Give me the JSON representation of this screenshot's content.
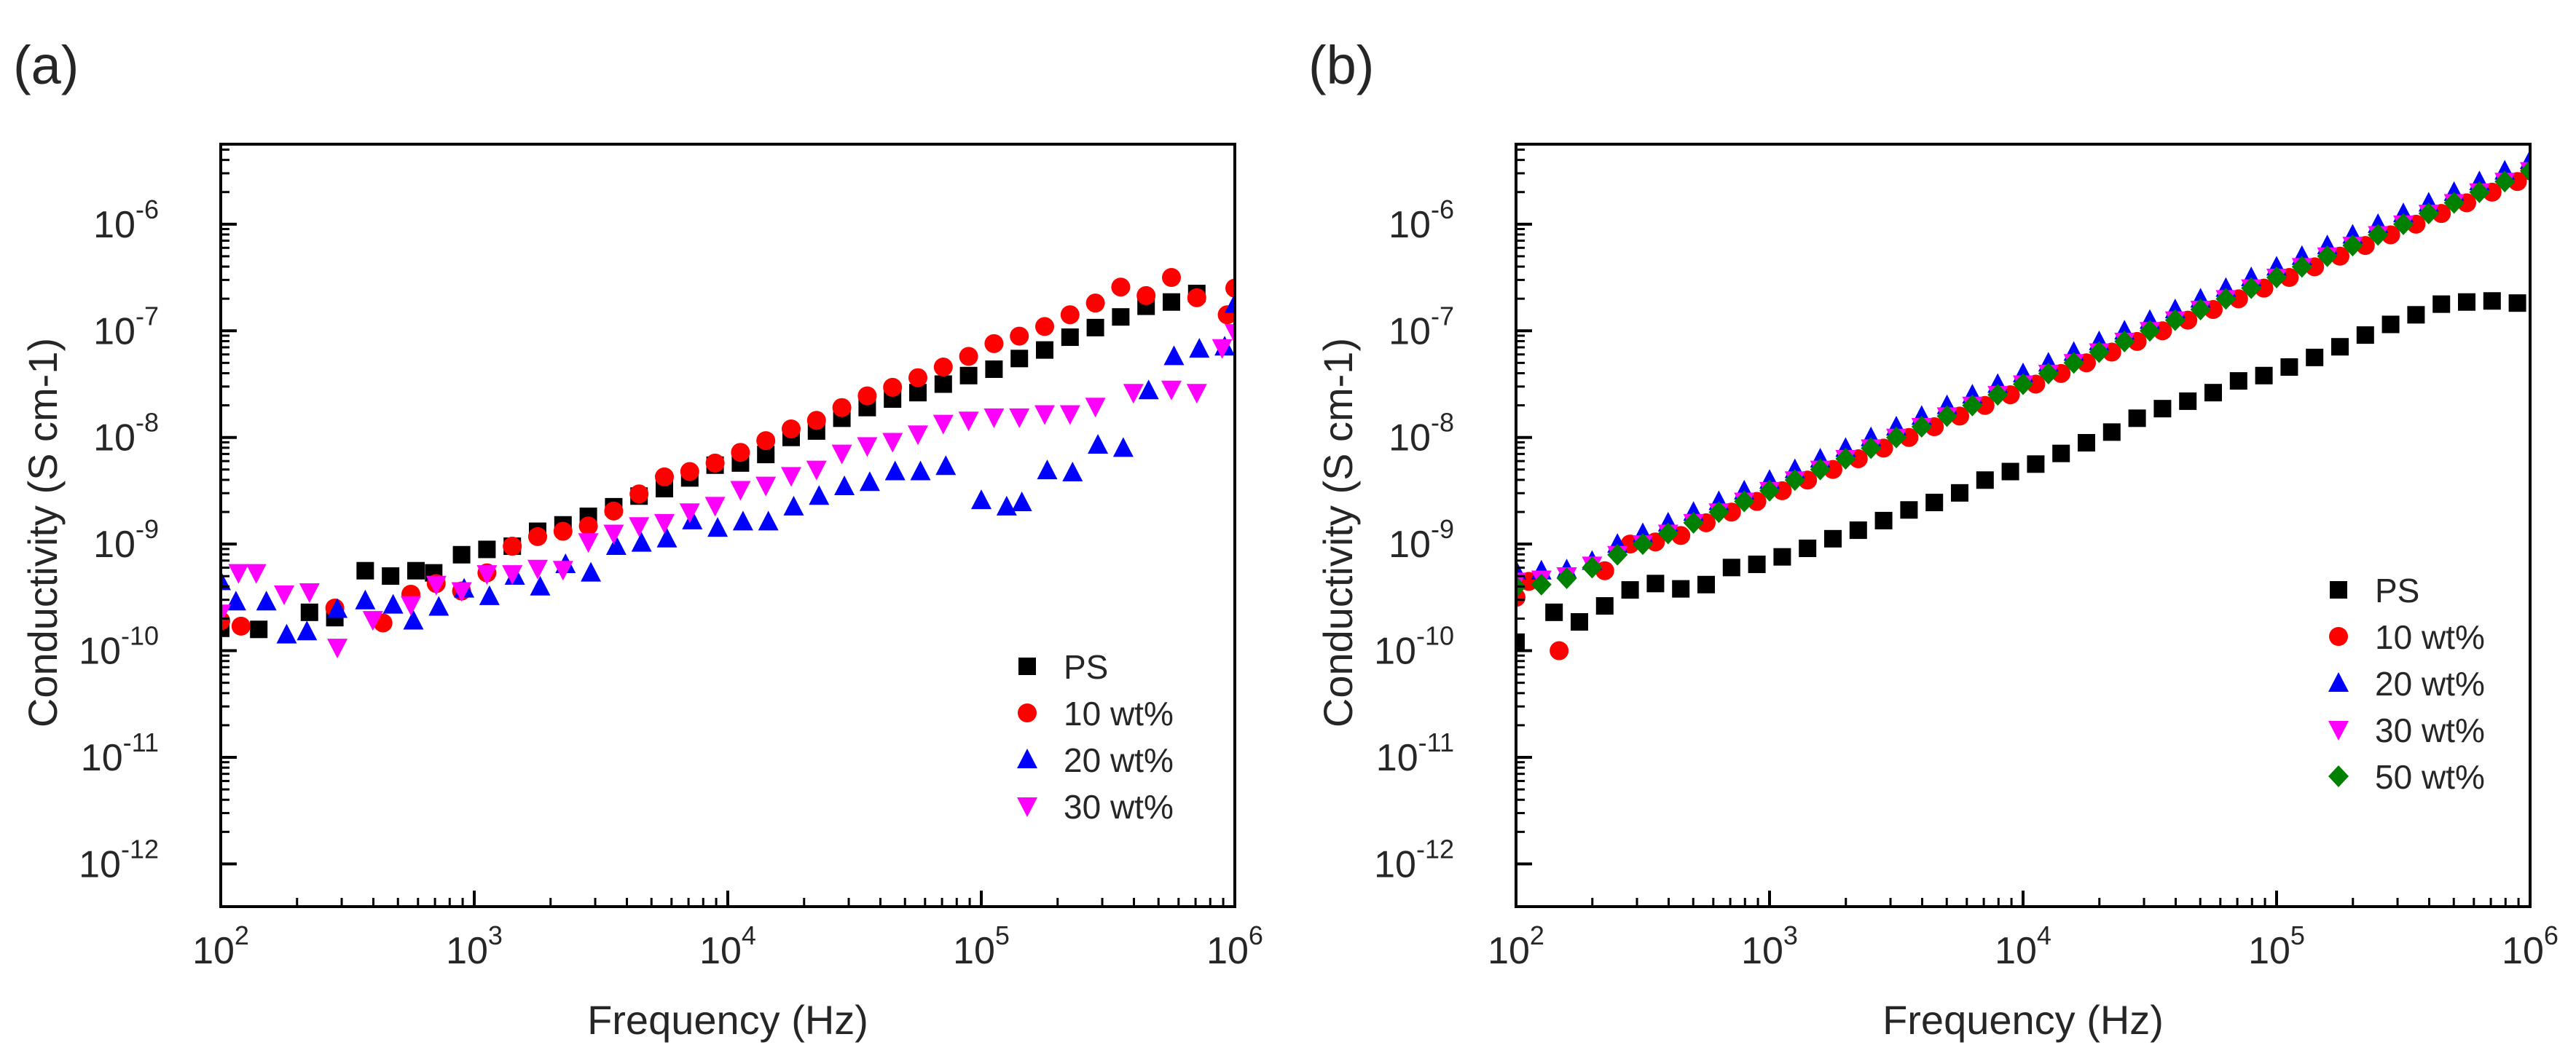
{
  "chart_data": [
    {
      "type": "scatter",
      "panel_label": "(a)",
      "xlabel": "Frequency (Hz)",
      "ylabel": "Conductivity (S cm-1)",
      "xscale": "log",
      "yscale": "log",
      "xlim_exp": [
        2,
        6
      ],
      "ylim_exp": [
        -12.4,
        -5.25
      ],
      "x_tick_exps": [
        "2",
        "3",
        "4",
        "5",
        "6"
      ],
      "y_tick_exps": [
        "-12",
        "-11",
        "-10",
        "-9",
        "-8",
        "-7",
        "-6"
      ],
      "legend_position": "lower-right",
      "series": [
        {
          "name": "PS",
          "marker": "square",
          "color": "#000000",
          "log_x": [
            2.0,
            2.15,
            2.35,
            2.45,
            2.57,
            2.67,
            2.77,
            2.84,
            2.95,
            3.05,
            3.15,
            3.25,
            3.35,
            3.45,
            3.55,
            3.65,
            3.75,
            3.85,
            3.95,
            4.05,
            4.15,
            4.25,
            4.35,
            4.45,
            4.55,
            4.65,
            4.75,
            4.85,
            4.95,
            5.05,
            5.15,
            5.25,
            5.35,
            5.45,
            5.55,
            5.65,
            5.75,
            5.85
          ],
          "log_y": [
            -9.79,
            -9.8,
            -9.64,
            -9.69,
            -9.25,
            -9.3,
            -9.25,
            -9.27,
            -9.1,
            -9.05,
            -9.02,
            -8.88,
            -8.82,
            -8.74,
            -8.65,
            -8.55,
            -8.48,
            -8.38,
            -8.26,
            -8.24,
            -8.16,
            -8.0,
            -7.94,
            -7.82,
            -7.72,
            -7.64,
            -7.58,
            -7.5,
            -7.42,
            -7.36,
            -7.26,
            -7.18,
            -7.06,
            -6.97,
            -6.87,
            -6.77,
            -6.73,
            -6.65
          ]
        },
        {
          "name": "10 wt%",
          "marker": "circle",
          "color": "#ff0000",
          "log_x": [
            2.0,
            2.08,
            2.45,
            2.64,
            2.75,
            2.85,
            2.95,
            3.05,
            3.15,
            3.25,
            3.35,
            3.45,
            3.55,
            3.65,
            3.75,
            3.85,
            3.95,
            4.05,
            4.15,
            4.25,
            4.35,
            4.45,
            4.55,
            4.65,
            4.75,
            4.85,
            4.95,
            5.05,
            5.15,
            5.25,
            5.35,
            5.45,
            5.55,
            5.65,
            5.75,
            5.85,
            5.97,
            6.0
          ],
          "log_y": [
            -9.72,
            -9.77,
            -9.6,
            -9.74,
            -9.47,
            -9.37,
            -9.44,
            -9.27,
            -9.02,
            -8.93,
            -8.88,
            -8.83,
            -8.69,
            -8.53,
            -8.37,
            -8.32,
            -8.24,
            -8.14,
            -8.03,
            -7.92,
            -7.84,
            -7.72,
            -7.61,
            -7.53,
            -7.44,
            -7.34,
            -7.24,
            -7.12,
            -7.05,
            -6.96,
            -6.85,
            -6.74,
            -6.59,
            -6.67,
            -6.5,
            -6.69,
            -6.85,
            -6.6
          ]
        },
        {
          "name": "20 wt%",
          "marker": "triangle-up",
          "color": "#0000ff",
          "log_x": [
            2.0,
            2.06,
            2.18,
            2.26,
            2.34,
            2.46,
            2.57,
            2.68,
            2.76,
            2.86,
            2.96,
            3.06,
            3.16,
            3.26,
            3.36,
            3.46,
            3.56,
            3.66,
            3.76,
            3.86,
            3.96,
            4.06,
            4.16,
            4.26,
            4.36,
            4.46,
            4.56,
            4.66,
            4.76,
            4.86,
            5.0,
            5.1,
            5.16,
            5.26,
            5.36,
            5.46,
            5.56,
            5.66,
            5.76,
            5.86,
            5.96,
            6.0
          ],
          "log_y": [
            -9.35,
            -9.54,
            -9.54,
            -9.85,
            -9.82,
            -9.61,
            -9.53,
            -9.57,
            -9.72,
            -9.59,
            -9.42,
            -9.49,
            -9.3,
            -9.4,
            -9.19,
            -9.27,
            -9.02,
            -8.99,
            -8.95,
            -8.78,
            -8.85,
            -8.79,
            -8.79,
            -8.65,
            -8.55,
            -8.46,
            -8.42,
            -8.32,
            -8.32,
            -8.27,
            -8.59,
            -8.65,
            -8.61,
            -8.31,
            -8.33,
            -8.07,
            -8.1,
            -7.56,
            -7.24,
            -7.17,
            -7.15,
            -6.75
          ]
        },
        {
          "name": "30 wt%",
          "marker": "triangle-down",
          "color": "#ff00ff",
          "log_x": [
            2.0,
            2.07,
            2.14,
            2.25,
            2.35,
            2.46,
            2.6,
            2.75,
            2.85,
            2.95,
            3.05,
            3.15,
            3.25,
            3.35,
            3.45,
            3.55,
            3.65,
            3.75,
            3.85,
            3.95,
            4.05,
            4.15,
            4.25,
            4.35,
            4.45,
            4.55,
            4.65,
            4.75,
            4.85,
            4.95,
            5.05,
            5.15,
            5.25,
            5.35,
            5.45,
            5.6,
            5.75,
            5.85,
            5.95,
            6.0
          ],
          "log_y": [
            -9.65,
            -9.27,
            -9.27,
            -9.47,
            -9.45,
            -9.97,
            -9.71,
            -9.57,
            -9.38,
            -9.44,
            -9.28,
            -9.28,
            -9.23,
            -9.24,
            -8.98,
            -8.9,
            -8.83,
            -8.8,
            -8.7,
            -8.64,
            -8.49,
            -8.45,
            -8.36,
            -8.3,
            -8.15,
            -8.08,
            -8.04,
            -7.97,
            -7.87,
            -7.84,
            -7.81,
            -7.81,
            -7.78,
            -7.78,
            -7.71,
            -7.58,
            -7.55,
            -7.58,
            -7.16,
            -7.02
          ]
        }
      ]
    },
    {
      "type": "scatter",
      "panel_label": "(b)",
      "xlabel": "Frequency (Hz)",
      "ylabel": "Conductivity (S cm-1)",
      "xscale": "log",
      "yscale": "log",
      "xlim_exp": [
        2,
        6
      ],
      "ylim_exp": [
        -12.4,
        -5.25
      ],
      "x_tick_exps": [
        "2",
        "3",
        "4",
        "5",
        "6"
      ],
      "y_tick_exps": [
        "-12",
        "-11",
        "-10",
        "-9",
        "-8",
        "-7",
        "-6"
      ],
      "legend_position": "lower-right",
      "series": [
        {
          "name": "PS",
          "marker": "square",
          "color": "#000000",
          "log_x": [
            2.0,
            2.15,
            2.25,
            2.35,
            2.45,
            2.55,
            2.65,
            2.75,
            2.85,
            2.95,
            3.05,
            3.15,
            3.25,
            3.35,
            3.45,
            3.55,
            3.65,
            3.75,
            3.85,
            3.95,
            4.05,
            4.15,
            4.25,
            4.35,
            4.45,
            4.55,
            4.65,
            4.75,
            4.85,
            4.95,
            5.05,
            5.15,
            5.25,
            5.35,
            5.45,
            5.55,
            5.65,
            5.75,
            5.85,
            5.95
          ],
          "log_y": [
            -9.92,
            -9.64,
            -9.73,
            -9.58,
            -9.43,
            -9.37,
            -9.42,
            -9.38,
            -9.22,
            -9.19,
            -9.12,
            -9.04,
            -8.95,
            -8.87,
            -8.78,
            -8.68,
            -8.61,
            -8.52,
            -8.4,
            -8.32,
            -8.25,
            -8.15,
            -8.05,
            -7.95,
            -7.82,
            -7.73,
            -7.66,
            -7.58,
            -7.47,
            -7.42,
            -7.34,
            -7.25,
            -7.15,
            -7.04,
            -6.94,
            -6.85,
            -6.75,
            -6.73,
            -6.72,
            -6.74
          ]
        },
        {
          "name": "10 wt%",
          "marker": "circle",
          "color": "#ff0000",
          "log_x": [
            2.0,
            2.05,
            2.17,
            2.35,
            2.45,
            2.55,
            2.65,
            2.75,
            2.85,
            2.95,
            3.05,
            3.15,
            3.25,
            3.35,
            3.45,
            3.55,
            3.65,
            3.75,
            3.85,
            3.95,
            4.05,
            4.15,
            4.25,
            4.35,
            4.45,
            4.55,
            4.65,
            4.75,
            4.85,
            4.95,
            5.05,
            5.15,
            5.25,
            5.35,
            5.45,
            5.55,
            5.65,
            5.75,
            5.85,
            5.95,
            6.0
          ],
          "log_y": [
            -9.5,
            -9.35,
            -10.0,
            -9.25,
            -9.0,
            -8.98,
            -8.92,
            -8.8,
            -8.7,
            -8.6,
            -8.5,
            -8.4,
            -8.3,
            -8.2,
            -8.1,
            -8.0,
            -7.9,
            -7.8,
            -7.7,
            -7.6,
            -7.5,
            -7.4,
            -7.3,
            -7.2,
            -7.1,
            -7.0,
            -6.9,
            -6.8,
            -6.7,
            -6.6,
            -6.5,
            -6.4,
            -6.3,
            -6.2,
            -6.1,
            -6.0,
            -5.9,
            -5.8,
            -5.7,
            -5.6,
            -5.5
          ]
        },
        {
          "name": "20 wt%",
          "marker": "triangle-up",
          "color": "#0000ff",
          "log_x": [
            2.0,
            2.1,
            2.2,
            2.3,
            2.4,
            2.5,
            2.6,
            2.7,
            2.8,
            2.9,
            3.0,
            3.1,
            3.2,
            3.3,
            3.4,
            3.5,
            3.6,
            3.7,
            3.8,
            3.9,
            4.0,
            4.1,
            4.2,
            4.3,
            4.4,
            4.5,
            4.6,
            4.7,
            4.8,
            4.9,
            5.0,
            5.1,
            5.2,
            5.3,
            5.4,
            5.5,
            5.6,
            5.7,
            5.8,
            5.9,
            6.0
          ],
          "log_y": [
            -9.25,
            -9.25,
            -9.24,
            -9.16,
            -9.0,
            -8.9,
            -8.8,
            -8.7,
            -8.6,
            -8.5,
            -8.4,
            -8.3,
            -8.2,
            -8.1,
            -8.0,
            -7.9,
            -7.8,
            -7.7,
            -7.6,
            -7.5,
            -7.4,
            -7.3,
            -7.2,
            -7.1,
            -7.0,
            -6.9,
            -6.8,
            -6.7,
            -6.6,
            -6.5,
            -6.4,
            -6.3,
            -6.2,
            -6.1,
            -6.0,
            -5.9,
            -5.8,
            -5.7,
            -5.6,
            -5.5,
            -5.4
          ]
        },
        {
          "name": "30 wt%",
          "marker": "triangle-down",
          "color": "#ff00ff",
          "log_x": [
            2.0,
            2.1,
            2.2,
            2.3,
            2.4,
            2.5,
            2.6,
            2.7,
            2.8,
            2.9,
            3.0,
            3.1,
            3.2,
            3.3,
            3.4,
            3.5,
            3.6,
            3.7,
            3.8,
            3.9,
            4.0,
            4.1,
            4.2,
            4.3,
            4.4,
            4.5,
            4.6,
            4.7,
            4.8,
            4.9,
            5.0,
            5.1,
            5.2,
            5.3,
            5.4,
            5.5,
            5.6,
            5.7,
            5.8,
            5.9,
            6.0
          ],
          "log_y": [
            -9.35,
            -9.33,
            -9.3,
            -9.2,
            -9.1,
            -9.0,
            -8.9,
            -8.8,
            -8.7,
            -8.6,
            -8.5,
            -8.4,
            -8.3,
            -8.2,
            -8.1,
            -8.0,
            -7.9,
            -7.8,
            -7.7,
            -7.6,
            -7.5,
            -7.4,
            -7.3,
            -7.2,
            -7.1,
            -7.0,
            -6.9,
            -6.8,
            -6.7,
            -6.6,
            -6.5,
            -6.4,
            -6.3,
            -6.2,
            -6.1,
            -6.0,
            -5.9,
            -5.8,
            -5.7,
            -5.6,
            -5.5
          ]
        },
        {
          "name": "50 wt%",
          "marker": "diamond",
          "color": "#008000",
          "log_x": [
            2.0,
            2.1,
            2.2,
            2.3,
            2.4,
            2.5,
            2.6,
            2.7,
            2.8,
            2.9,
            3.0,
            3.1,
            3.2,
            3.3,
            3.4,
            3.5,
            3.6,
            3.7,
            3.8,
            3.9,
            4.0,
            4.1,
            4.2,
            4.3,
            4.4,
            4.5,
            4.6,
            4.7,
            4.8,
            4.9,
            5.0,
            5.1,
            5.2,
            5.3,
            5.4,
            5.5,
            5.6,
            5.7,
            5.8,
            5.9,
            6.0
          ],
          "log_y": [
            -9.4,
            -9.38,
            -9.32,
            -9.22,
            -9.1,
            -9.0,
            -8.9,
            -8.8,
            -8.7,
            -8.6,
            -8.5,
            -8.4,
            -8.3,
            -8.2,
            -8.1,
            -8.0,
            -7.9,
            -7.8,
            -7.7,
            -7.6,
            -7.5,
            -7.4,
            -7.3,
            -7.2,
            -7.1,
            -7.0,
            -6.9,
            -6.8,
            -6.7,
            -6.6,
            -6.5,
            -6.4,
            -6.3,
            -6.2,
            -6.1,
            -6.0,
            -5.9,
            -5.8,
            -5.7,
            -5.6,
            -5.5
          ]
        }
      ]
    }
  ]
}
